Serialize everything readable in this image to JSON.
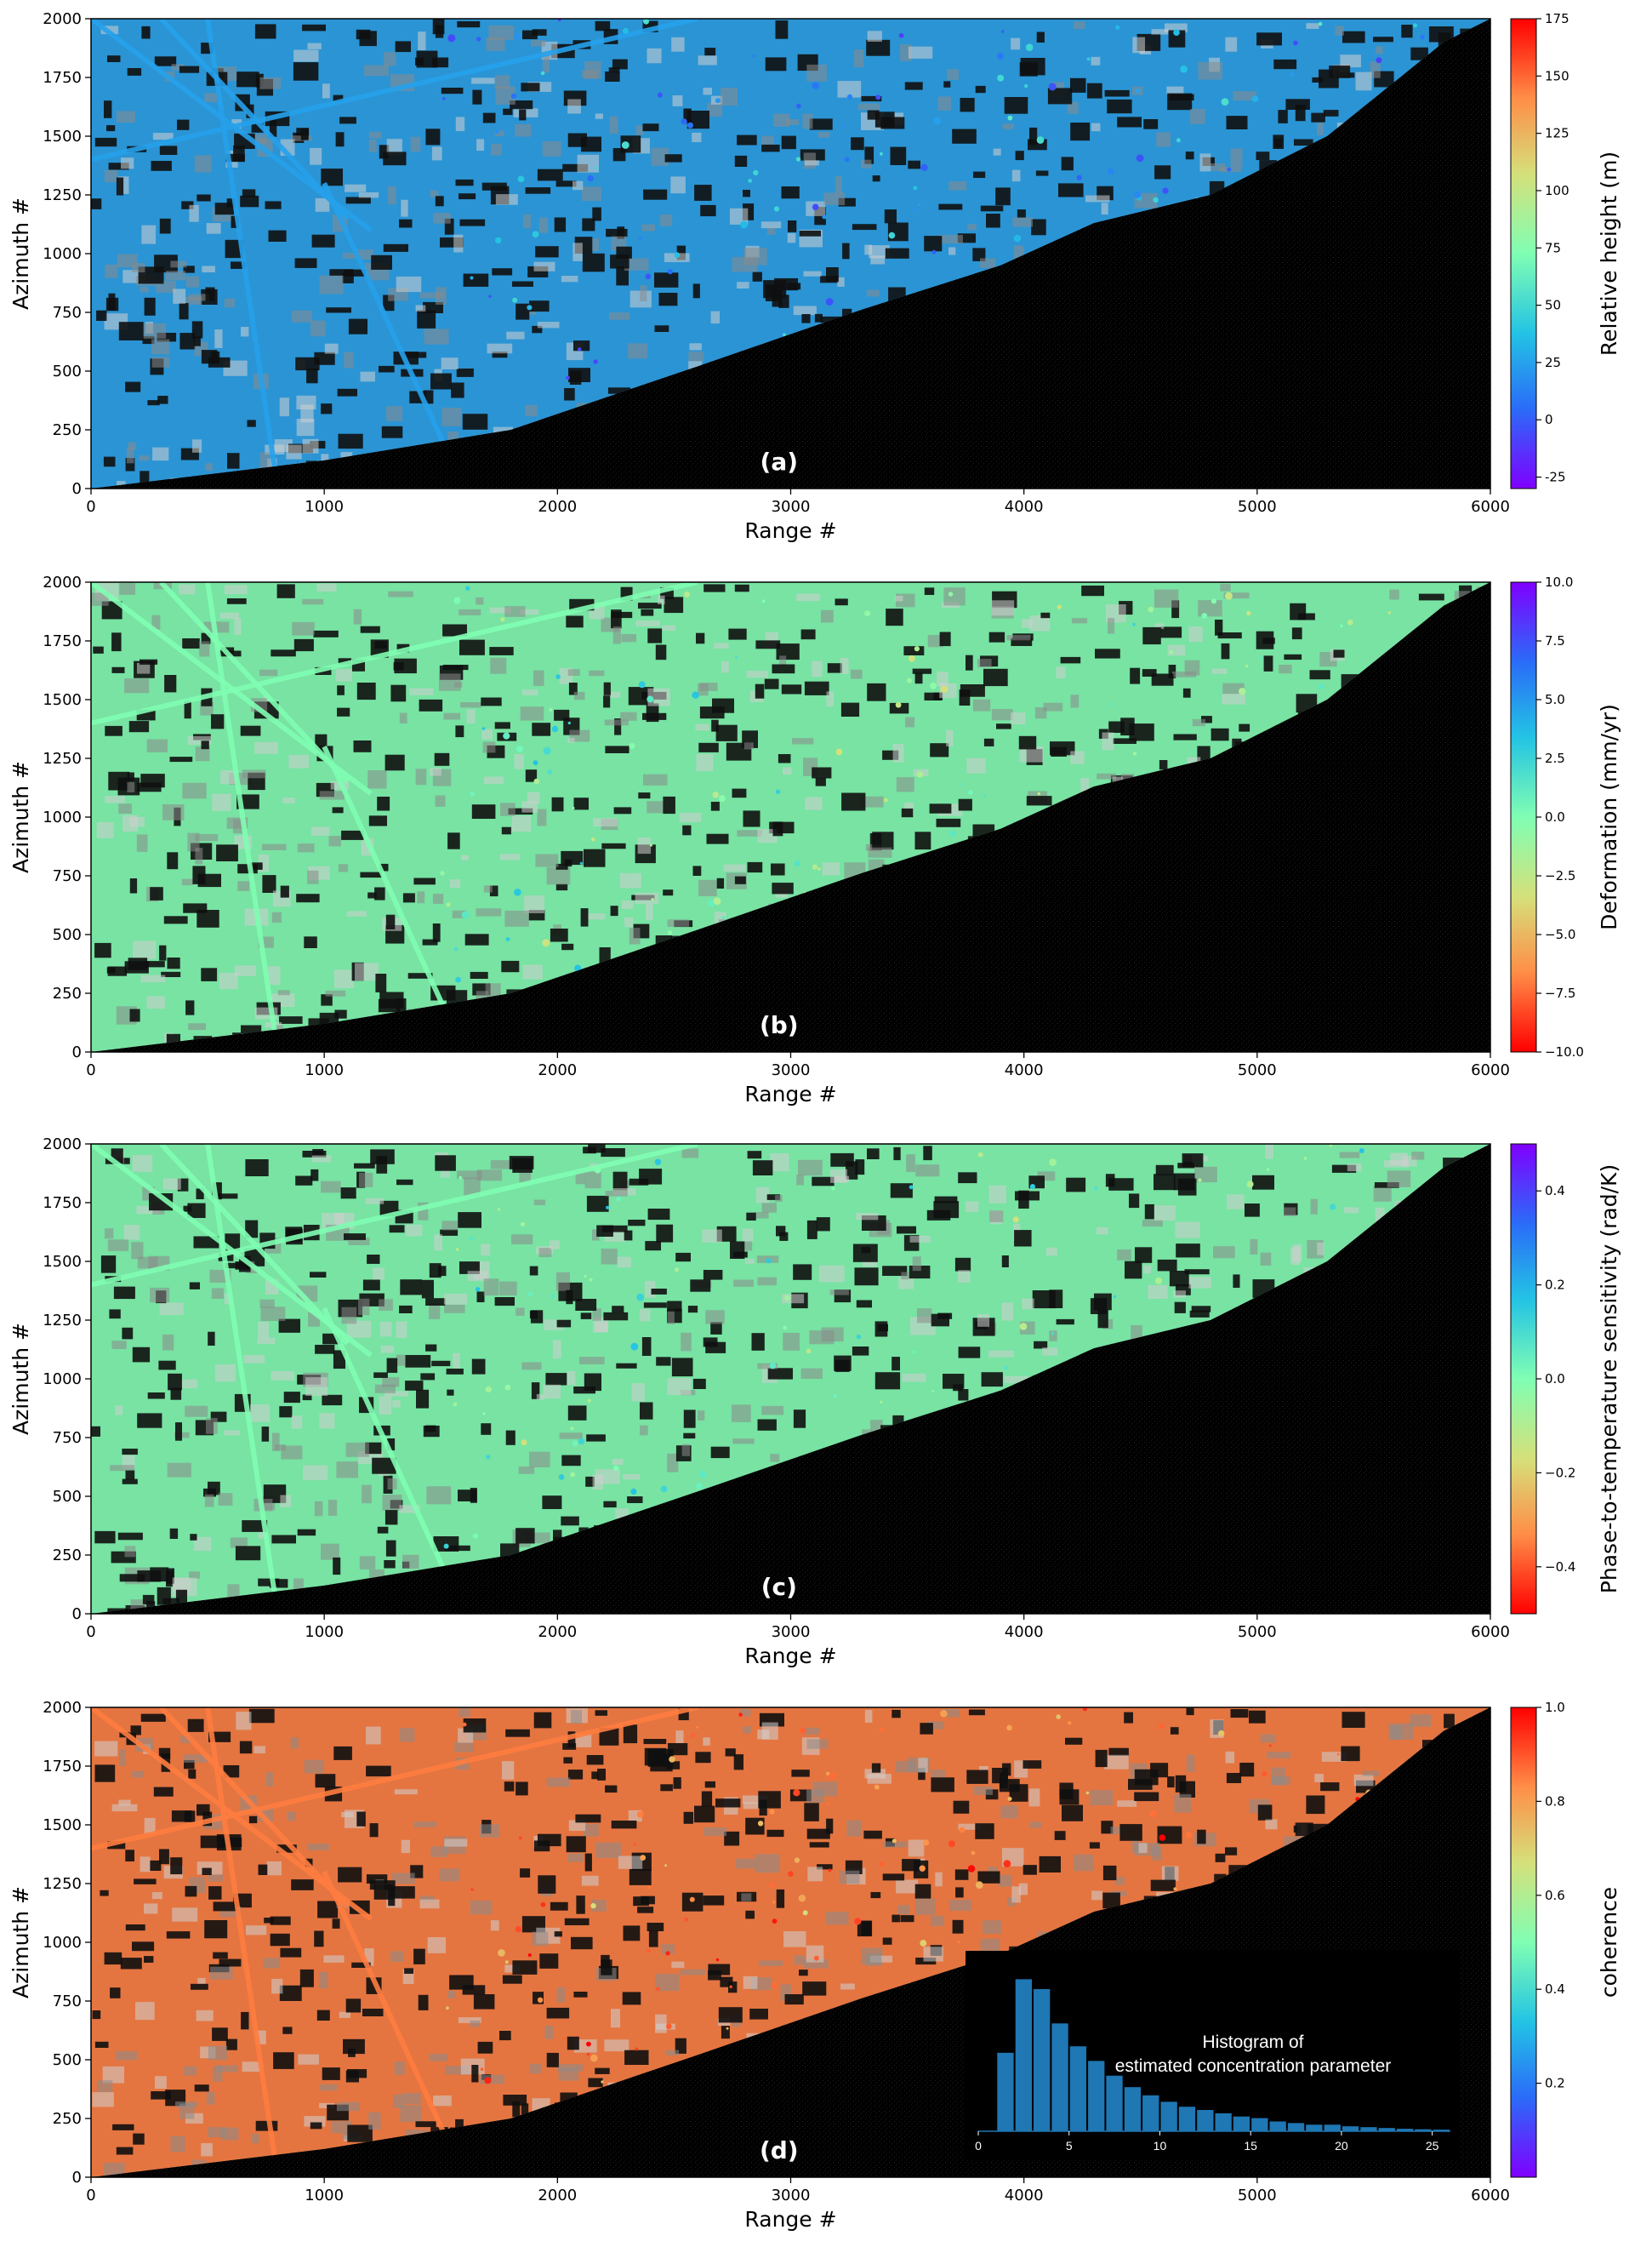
{
  "figure": {
    "background_color": "#000000",
    "urban_colors": {
      "rainbow_low": "#7f00ff",
      "rainbow_mid": "#80ff80",
      "rainbow_high": "#ff0000"
    }
  },
  "chart_data": [
    {
      "type": "heatmap",
      "panel_label": "(a)",
      "xlabel": "Range #",
      "ylabel": "Azimuth #",
      "xlim": [
        0,
        6000
      ],
      "ylim": [
        0,
        2000
      ],
      "xticks": [
        0,
        1000,
        2000,
        3000,
        4000,
        5000,
        6000
      ],
      "yticks": [
        0,
        250,
        500,
        750,
        1000,
        1250,
        1500,
        1750,
        2000
      ],
      "colorbar": {
        "label": "Relative height (m)",
        "range": [
          -30,
          175
        ],
        "ticks": [
          -25,
          0,
          25,
          50,
          75,
          100,
          125,
          150,
          175
        ],
        "colormap": "rainbow"
      },
      "dominant_value": 25
    },
    {
      "type": "heatmap",
      "panel_label": "(b)",
      "xlabel": "Range #",
      "ylabel": "Azimuth #",
      "xlim": [
        0,
        6000
      ],
      "ylim": [
        0,
        2000
      ],
      "xticks": [
        0,
        1000,
        2000,
        3000,
        4000,
        5000,
        6000
      ],
      "yticks": [
        0,
        250,
        500,
        750,
        1000,
        1250,
        1500,
        1750,
        2000
      ],
      "colorbar": {
        "label": "Deformation (mm/yr)",
        "range": [
          -10,
          10
        ],
        "ticks": [
          "10.0",
          "7.5",
          "5.0",
          "2.5",
          "0.0",
          "−2.5",
          "−5.0",
          "−7.5",
          "−10.0"
        ],
        "tick_values": [
          10,
          7.5,
          5,
          2.5,
          0,
          -2.5,
          -5,
          -7.5,
          -10
        ],
        "colormap": "rainbow_reversed"
      },
      "dominant_value": 0
    },
    {
      "type": "heatmap",
      "panel_label": "(c)",
      "xlabel": "Range #",
      "ylabel": "Azimuth #",
      "xlim": [
        0,
        6000
      ],
      "ylim": [
        0,
        2000
      ],
      "xticks": [
        0,
        1000,
        2000,
        3000,
        4000,
        5000,
        6000
      ],
      "yticks": [
        0,
        250,
        500,
        750,
        1000,
        1250,
        1500,
        1750,
        2000
      ],
      "colorbar": {
        "label": "Phase-to-temperature sensitivity (rad/K)",
        "range": [
          -0.5,
          0.5
        ],
        "ticks": [
          "0.4",
          "0.2",
          "0.0",
          "−0.2",
          "−0.4"
        ],
        "tick_values": [
          0.4,
          0.2,
          0,
          -0.2,
          -0.4
        ],
        "colormap": "rainbow_reversed"
      },
      "dominant_value": 0
    },
    {
      "type": "heatmap",
      "panel_label": "(d)",
      "xlabel": "Range #",
      "ylabel": "Azimuth #",
      "xlim": [
        0,
        6000
      ],
      "ylim": [
        0,
        2000
      ],
      "xticks": [
        0,
        1000,
        2000,
        3000,
        4000,
        5000,
        6000
      ],
      "yticks": [
        0,
        250,
        500,
        750,
        1000,
        1250,
        1500,
        1750,
        2000
      ],
      "colorbar": {
        "label": "coherence",
        "range": [
          0,
          1
        ],
        "ticks": [
          "1.0",
          "0.8",
          "0.6",
          "0.4",
          "0.2"
        ],
        "tick_values": [
          1.0,
          0.8,
          0.6,
          0.4,
          0.2
        ],
        "colormap": "rainbow"
      },
      "dominant_value": 0.85,
      "inset": {
        "type": "bar",
        "title_line1": "Histogram of",
        "title_line2": "estimated concentration parameter",
        "xlim": [
          0,
          26
        ],
        "xticks": [
          0,
          5,
          10,
          15,
          20,
          25
        ],
        "bar_color": "#1f77b4",
        "x": [
          1.5,
          2.5,
          3.5,
          4.5,
          5.5,
          6.5,
          7.5,
          8.5,
          9.5,
          10.5,
          11.5,
          12.5,
          13.5,
          14.5,
          15.5,
          16.5,
          17.5,
          18.5,
          19.5,
          20.5,
          21.5,
          22.5,
          23.5,
          24.5,
          25.5
        ],
        "values": [
          0.48,
          0.93,
          0.87,
          0.66,
          0.52,
          0.43,
          0.34,
          0.27,
          0.22,
          0.18,
          0.15,
          0.13,
          0.11,
          0.09,
          0.08,
          0.06,
          0.05,
          0.04,
          0.04,
          0.03,
          0.025,
          0.02,
          0.015,
          0.012,
          0.01
        ]
      }
    }
  ]
}
